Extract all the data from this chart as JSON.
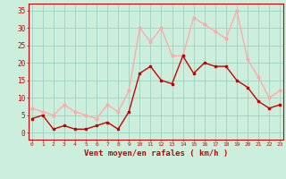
{
  "hours": [
    0,
    1,
    2,
    3,
    4,
    5,
    6,
    7,
    8,
    9,
    10,
    11,
    12,
    13,
    14,
    15,
    16,
    17,
    18,
    19,
    20,
    21,
    22,
    23
  ],
  "wind_mean": [
    4,
    5,
    1,
    2,
    1,
    1,
    2,
    3,
    1,
    6,
    17,
    19,
    15,
    14,
    22,
    17,
    20,
    19,
    19,
    15,
    13,
    9,
    7,
    8
  ],
  "wind_gust": [
    7,
    6,
    5,
    8,
    6,
    5,
    4,
    8,
    6,
    12,
    30,
    26,
    30,
    22,
    22,
    33,
    31,
    29,
    27,
    35,
    21,
    16,
    10,
    12
  ],
  "mean_color": "#cc0000",
  "gust_color": "#ffaaaa",
  "bg_color": "#cceedd",
  "grid_color": "#99ccbb",
  "axis_color": "#cc0000",
  "xlabel": "Vent moyen/en rafales ( km/h )",
  "ylim": [
    -2,
    37
  ],
  "yticks": [
    0,
    5,
    10,
    15,
    20,
    25,
    30,
    35
  ],
  "xlim": [
    -0.3,
    23.3
  ]
}
